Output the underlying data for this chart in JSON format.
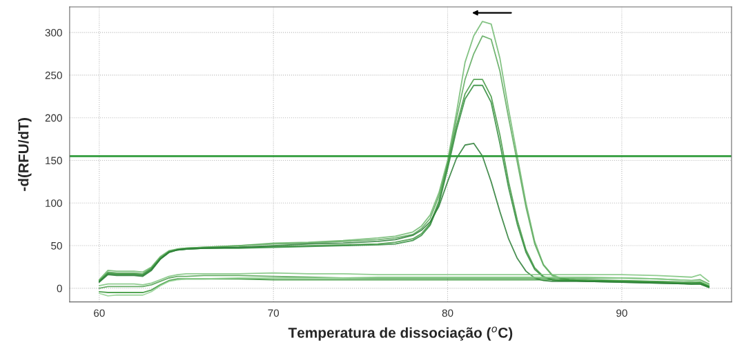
{
  "chart_data": {
    "type": "line",
    "xlabel": "Temperatura de dissociação ($^{o}$C)",
    "ylabel": "-d(RFU/dT)",
    "x": [
      60,
      60.5,
      61,
      62,
      62.5,
      63,
      63.5,
      64,
      64.5,
      65,
      66,
      68,
      70,
      72,
      74,
      76,
      77,
      78,
      78.5,
      79,
      79.5,
      80,
      80.5,
      81,
      81.5,
      82,
      82.5,
      83,
      83.5,
      84,
      84.5,
      85,
      85.5,
      86,
      86.5,
      87,
      88,
      90,
      92,
      94,
      94.5,
      95
    ],
    "series": [
      {
        "color": "#6fb86f",
        "values": [
          10,
          21,
          20,
          20,
          19,
          25,
          37,
          44,
          46,
          47,
          48,
          50,
          53,
          54,
          56,
          59,
          61,
          66,
          73,
          86,
          112,
          150,
          205,
          265,
          296,
          313,
          310,
          270,
          210,
          155,
          100,
          55,
          28,
          16,
          12,
          10,
          9,
          8,
          7,
          6,
          7,
          2
        ]
      },
      {
        "color": "#5aa85a",
        "values": [
          9,
          19,
          18,
          18,
          17,
          24,
          36,
          43,
          46,
          47,
          48,
          50,
          52,
          53,
          55,
          57,
          59,
          63,
          70,
          82,
          108,
          146,
          198,
          245,
          275,
          296,
          292,
          255,
          200,
          148,
          95,
          52,
          27,
          15,
          11,
          10,
          9,
          8,
          7,
          5,
          6,
          2
        ]
      },
      {
        "color": "#3f963f",
        "values": [
          8,
          18,
          17,
          17,
          16,
          23,
          35,
          43,
          45,
          46,
          47,
          48,
          49,
          50,
          51,
          52,
          54,
          58,
          64,
          76,
          102,
          145,
          190,
          228,
          245,
          245,
          225,
          180,
          125,
          80,
          45,
          24,
          14,
          10,
          9,
          9,
          8,
          8,
          7,
          5,
          5,
          1
        ]
      },
      {
        "color": "#2e8b3a",
        "values": [
          8,
          17,
          16,
          16,
          15,
          22,
          34,
          42,
          45,
          46,
          47,
          47,
          48,
          49,
          50,
          51,
          52,
          56,
          62,
          74,
          99,
          140,
          185,
          222,
          238,
          238,
          218,
          170,
          118,
          75,
          42,
          22,
          13,
          10,
          9,
          9,
          8,
          7,
          6,
          5,
          5,
          1
        ]
      },
      {
        "color": "#2a7d35",
        "values": [
          7,
          16,
          15,
          15,
          14,
          21,
          34,
          42,
          45,
          46,
          47,
          48,
          50,
          52,
          53,
          55,
          57,
          62,
          68,
          78,
          96,
          125,
          152,
          168,
          170,
          155,
          125,
          90,
          58,
          35,
          20,
          12,
          9,
          8,
          8,
          8,
          8,
          7,
          6,
          5,
          5,
          2
        ]
      },
      {
        "color": "#7cc47c",
        "values": [
          3,
          5,
          5,
          5,
          4,
          6,
          10,
          14,
          16,
          17,
          17,
          17,
          18,
          17,
          17,
          16,
          16,
          16,
          16,
          16,
          16,
          16,
          16,
          16,
          16,
          16,
          16,
          16,
          16,
          16,
          16,
          16,
          16,
          16,
          16,
          16,
          16,
          16,
          15,
          13,
          16,
          8
        ]
      },
      {
        "color": "#4fa04f",
        "values": [
          0,
          2,
          2,
          2,
          2,
          4,
          8,
          12,
          14,
          14,
          15,
          15,
          14,
          13,
          12,
          12,
          12,
          12,
          12,
          12,
          12,
          12,
          12,
          12,
          12,
          12,
          12,
          12,
          12,
          12,
          12,
          12,
          12,
          12,
          12,
          12,
          12,
          12,
          11,
          9,
          10,
          5
        ]
      },
      {
        "color": "#359435",
        "values": [
          -4,
          -5,
          -5,
          -5,
          -5,
          -2,
          4,
          9,
          11,
          11,
          11,
          11,
          10,
          10,
          10,
          10,
          10,
          10,
          10,
          10,
          10,
          10,
          10,
          10,
          10,
          10,
          10,
          10,
          10,
          10,
          10,
          10,
          10,
          10,
          10,
          10,
          10,
          9,
          8,
          7,
          7,
          3
        ]
      },
      {
        "color": "#8fd08f",
        "values": [
          -6,
          -9,
          -8,
          -8,
          -8,
          -4,
          3,
          8,
          10,
          11,
          11,
          12,
          12,
          12,
          12,
          13,
          13,
          13,
          13,
          13,
          13,
          13,
          13,
          13,
          13,
          13,
          13,
          13,
          13,
          13,
          13,
          13,
          13,
          13,
          13,
          13,
          13,
          12,
          11,
          9,
          9,
          4
        ]
      }
    ],
    "ref_lines": [
      {
        "axis": "y",
        "value": 155,
        "color": "#2e9b3a"
      }
    ],
    "xlim": [
      58.3,
      96.3
    ],
    "ylim": [
      -16,
      330
    ],
    "xticks": [
      60,
      70,
      80,
      90
    ],
    "yticks": [
      0,
      50,
      100,
      150,
      200,
      250,
      300
    ],
    "grid": true,
    "marker": "none",
    "line_style": "solid"
  }
}
